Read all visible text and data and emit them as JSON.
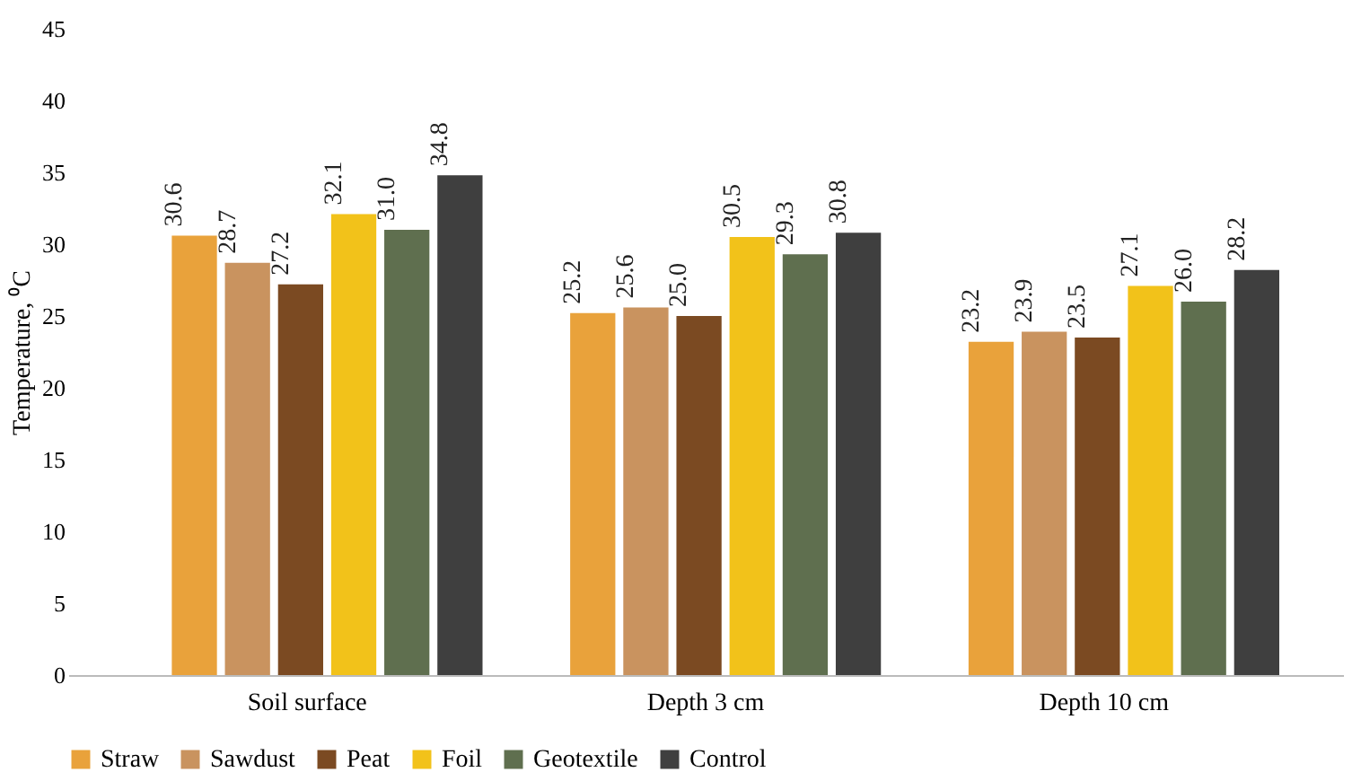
{
  "chart_data": {
    "type": "bar",
    "ylabel": "Temperature, ⁰C",
    "categories": [
      "Soil surface",
      "Depth 3 cm",
      "Depth 10 cm"
    ],
    "series": [
      {
        "name": "Straw",
        "color": "#e9a23b",
        "values": [
          30.6,
          25.2,
          23.2
        ],
        "value_labels": [
          "30.6",
          "25.2",
          "23.2"
        ]
      },
      {
        "name": "Sawdust",
        "color": "#c9935f",
        "values": [
          28.7,
          25.6,
          23.9
        ],
        "value_labels": [
          "28.7",
          "25.6",
          "23.9"
        ]
      },
      {
        "name": "Peat",
        "color": "#7b4a22",
        "values": [
          27.2,
          25.0,
          23.5
        ],
        "value_labels": [
          "27.2",
          "25.0",
          "23.5"
        ]
      },
      {
        "name": "Foil",
        "color": "#f2c21a",
        "values": [
          32.1,
          30.5,
          27.1
        ],
        "value_labels": [
          "32.1",
          "30.5",
          "27.1"
        ]
      },
      {
        "name": "Geotextile",
        "color": "#5f6f4f",
        "values": [
          31.0,
          29.3,
          26.0
        ],
        "value_labels": [
          "31.0",
          "29.3",
          "26.0"
        ]
      },
      {
        "name": "Control",
        "color": "#3f3f3f",
        "values": [
          34.8,
          30.8,
          28.2
        ],
        "value_labels": [
          "34.8",
          "30.8",
          "28.2"
        ]
      }
    ],
    "ylim": [
      0,
      45
    ],
    "yticks": [
      0,
      5,
      10,
      15,
      20,
      25,
      30,
      35,
      40,
      45
    ],
    "grid": false,
    "legend": "bottom"
  }
}
